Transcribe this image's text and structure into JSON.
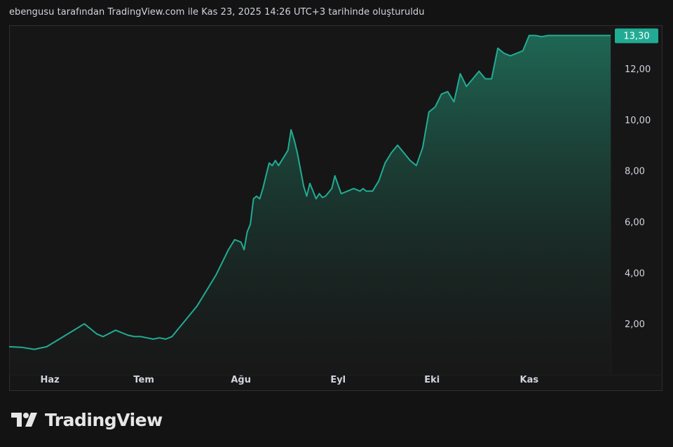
{
  "caption": "ebengusu tarafından TradingView.com ile Kas 23, 2025 14:26 UTC+3 tarihinde oluşturuldu",
  "brand": {
    "name": "TradingView",
    "logo_icon": "tradingview-logo-icon"
  },
  "colors": {
    "line": "#22ab94",
    "area_top": "#1f6b57",
    "background": "#161616",
    "label_bg": "#22ab94"
  },
  "chart_data": {
    "type": "area",
    "y_axis_ticks": [
      "2,00",
      "4,00",
      "6,00",
      "8,00",
      "10,00",
      "12,00"
    ],
    "y_tick_values": [
      2,
      4,
      6,
      8,
      10,
      12
    ],
    "ylim": [
      0,
      13.7
    ],
    "x_axis_ticks": [
      "Haz",
      "Tem",
      "Ağu",
      "Eyl",
      "Eki",
      "Kas"
    ],
    "x_tick_days": [
      13,
      43,
      74,
      105,
      135,
      166
    ],
    "xlim": [
      0,
      192
    ],
    "last_value": 13.3,
    "last_value_label": "13,30",
    "series": [
      {
        "days": [
          0,
          4,
          8,
          12,
          16,
          20,
          24,
          26,
          28,
          30,
          34,
          38,
          40,
          42,
          44,
          46,
          48,
          50,
          52,
          54,
          56,
          58,
          60,
          62,
          64,
          66,
          68,
          70,
          72,
          74,
          75,
          76,
          77,
          78,
          79,
          80,
          81,
          82,
          83,
          84,
          85,
          86,
          88,
          89,
          90,
          91,
          92,
          94,
          95,
          96,
          97,
          98,
          99,
          100,
          101,
          102,
          103,
          104,
          106,
          108,
          110,
          112,
          113,
          114,
          116,
          118,
          120,
          122,
          124,
          126,
          128,
          130,
          132,
          134,
          136,
          138,
          140,
          142,
          144,
          146,
          148,
          150,
          152,
          154,
          156,
          158,
          160,
          162,
          164,
          166,
          168,
          170,
          172,
          174,
          176,
          178,
          180,
          182,
          184,
          186,
          188,
          190,
          192
        ],
        "values": [
          1.1,
          1.08,
          1.0,
          1.1,
          1.4,
          1.7,
          2.0,
          1.8,
          1.6,
          1.5,
          1.75,
          1.55,
          1.5,
          1.5,
          1.45,
          1.4,
          1.45,
          1.4,
          1.5,
          1.8,
          2.1,
          2.4,
          2.7,
          3.1,
          3.5,
          3.9,
          4.4,
          4.9,
          5.3,
          5.2,
          4.9,
          5.6,
          5.9,
          6.9,
          7.0,
          6.9,
          7.3,
          7.8,
          8.3,
          8.2,
          8.4,
          8.2,
          8.6,
          8.8,
          9.6,
          9.2,
          8.7,
          7.4,
          7.0,
          7.5,
          7.2,
          6.9,
          7.1,
          6.95,
          7.0,
          7.15,
          7.3,
          7.8,
          7.1,
          7.2,
          7.3,
          7.2,
          7.3,
          7.2,
          7.2,
          7.6,
          8.3,
          8.7,
          9.0,
          8.7,
          8.4,
          8.2,
          8.9,
          10.3,
          10.5,
          11.0,
          11.1,
          10.7,
          11.8,
          11.3,
          11.6,
          11.9,
          11.6,
          11.6,
          12.8,
          12.6,
          12.5,
          12.6,
          12.7,
          13.3,
          13.3,
          13.25,
          13.3,
          13.3,
          13.3,
          13.3,
          13.3,
          13.3,
          13.3,
          13.3,
          13.3,
          13.3,
          13.3
        ]
      }
    ]
  }
}
